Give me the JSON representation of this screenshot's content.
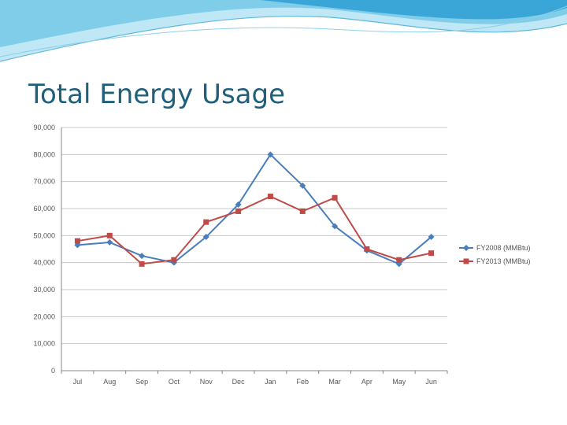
{
  "slide": {
    "title": "Total Energy Usage",
    "theme_colors": {
      "title": "#1f5f7a",
      "wave_dark": "#3aa6d8",
      "wave_light": "#a9dff2"
    }
  },
  "chart_data": {
    "type": "line",
    "title": "",
    "xlabel": "",
    "ylabel": "",
    "categories": [
      "Jul",
      "Aug",
      "Sep",
      "Oct",
      "Nov",
      "Dec",
      "Jan",
      "Feb",
      "Mar",
      "Apr",
      "May",
      "Jun"
    ],
    "ylim": [
      0,
      90000
    ],
    "yticks": [
      0,
      10000,
      20000,
      30000,
      40000,
      50000,
      60000,
      70000,
      80000,
      90000
    ],
    "ytick_labels": [
      "0",
      "10,000",
      "20,000",
      "30,000",
      "40,000",
      "50,000",
      "60,000",
      "70,000",
      "80,000",
      "90,000"
    ],
    "grid": true,
    "legend_position": "right",
    "series": [
      {
        "name": "FY2008 (MMBtu)",
        "color": "#4a7ebb",
        "marker": "diamond",
        "values": [
          46500,
          47500,
          42500,
          40000,
          49500,
          61500,
          80000,
          68500,
          53500,
          44500,
          39500,
          49500
        ]
      },
      {
        "name": "FY2013 (MMBtu)",
        "color": "#be4b48",
        "marker": "square",
        "values": [
          48000,
          50000,
          39500,
          41000,
          55000,
          59000,
          64500,
          59000,
          64000,
          45000,
          41000,
          43500
        ]
      }
    ]
  }
}
